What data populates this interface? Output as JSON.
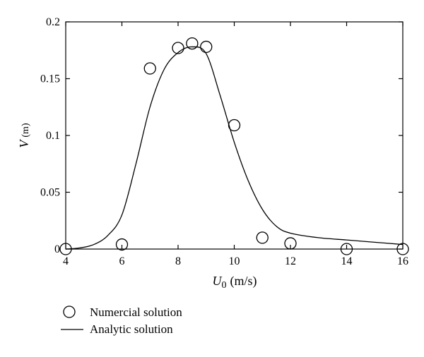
{
  "chart_data": {
    "type": "line",
    "xlabel": {
      "symbol": "U",
      "subscript": "0",
      "unit": "(m/s)"
    },
    "ylabel": {
      "symbol": "V",
      "unit": "(m)"
    },
    "xlim": [
      4,
      16
    ],
    "ylim": [
      0,
      0.2
    ],
    "xticks": [
      4,
      6,
      8,
      10,
      12,
      14,
      16
    ],
    "xtick_labels": [
      "4",
      "6",
      "8",
      "10",
      "12",
      "14",
      "16"
    ],
    "yticks": [
      0,
      0.05,
      0.1,
      0.15,
      0.2
    ],
    "ytick_labels": [
      "0",
      "0.05",
      "0.1",
      "0.15",
      "0.2"
    ],
    "grid": false,
    "legend_position": "bottom-left",
    "series": [
      {
        "name": "Numercial solution",
        "style": "open-circle-markers",
        "x": [
          4,
          6,
          7,
          8,
          8.5,
          9,
          10,
          11,
          12,
          14,
          16
        ],
        "y": [
          0,
          0.004,
          0.159,
          0.177,
          0.181,
          0.178,
          0.109,
          0.01,
          0.005,
          0,
          0
        ]
      },
      {
        "name": "Analytic solution",
        "style": "solid-line",
        "x": [
          4,
          4.5,
          5,
          5.5,
          6,
          6.5,
          7,
          7.5,
          8,
          8.5,
          9,
          9.5,
          10,
          10.5,
          11,
          11.5,
          12,
          13,
          14,
          15,
          16
        ],
        "y": [
          0,
          0.001,
          0.004,
          0.012,
          0.03,
          0.075,
          0.125,
          0.158,
          0.173,
          0.178,
          0.172,
          0.135,
          0.094,
          0.06,
          0.035,
          0.02,
          0.014,
          0.01,
          0.008,
          0.006,
          0.004
        ]
      }
    ]
  }
}
